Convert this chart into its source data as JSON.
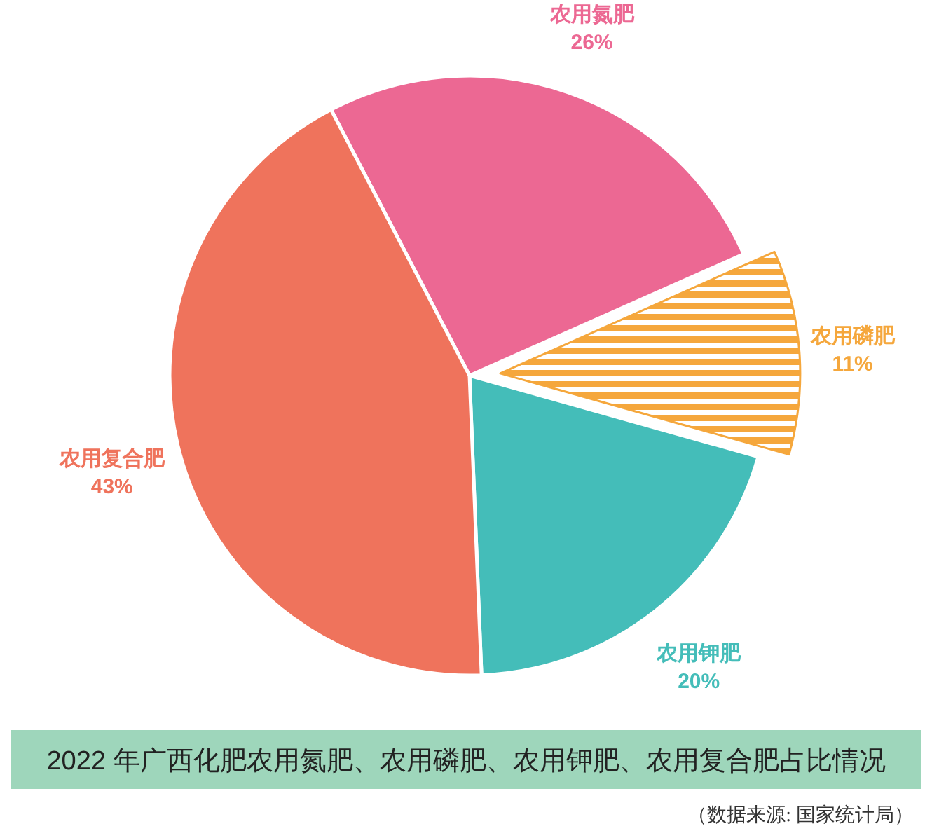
{
  "chart_data": {
    "type": "pie",
    "title": "2022 年广西化肥农用氮肥、农用磷肥、农用钾肥、农用复合肥占比情况",
    "categories": [
      "农用氮肥",
      "农用磷肥",
      "农用钾肥",
      "农用复合肥"
    ],
    "values": [
      26,
      11,
      20,
      43
    ],
    "value_labels": [
      "26%",
      "11%",
      "20%",
      "43%"
    ],
    "colors": [
      "#ec6893",
      "#f5a73c",
      "#44bdb9",
      "#ef735c"
    ],
    "annotations": [
      "（数据来源: 国家统计局）"
    ]
  }
}
